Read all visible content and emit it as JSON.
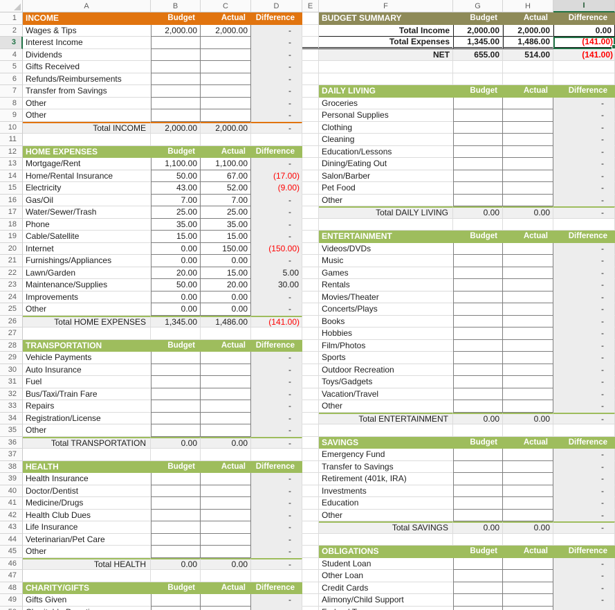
{
  "colors": {
    "orange": "#E1740F",
    "green": "#9EBD5D",
    "olive": "#8E8A58",
    "negative_red": "#FF0000",
    "selection_green": "#217346",
    "total_row_fill": "#F0F0F0",
    "difference_col_fill": "#EDEDED"
  },
  "selection": {
    "cell": "I3",
    "column": "I",
    "row": 3
  },
  "column_headers": [
    "A",
    "B",
    "C",
    "D",
    "E",
    "F",
    "G",
    "H",
    "I"
  ],
  "left_rows": [
    {
      "n": 1,
      "t": "section",
      "accent": "orange",
      "label": "INCOME",
      "h": [
        "Budget",
        "Actual",
        "Difference"
      ]
    },
    {
      "n": 2,
      "t": "item",
      "label": "Wages & Tips",
      "b": "2,000.00",
      "a": "2,000.00",
      "d": "-"
    },
    {
      "n": 3,
      "t": "item",
      "label": "Interest Income",
      "b": "",
      "a": "",
      "d": "-"
    },
    {
      "n": 4,
      "t": "item",
      "label": "Dividends",
      "b": "",
      "a": "",
      "d": "-"
    },
    {
      "n": 5,
      "t": "item",
      "label": "Gifts Received",
      "b": "",
      "a": "",
      "d": "-"
    },
    {
      "n": 6,
      "t": "item",
      "label": "Refunds/Reimbursements",
      "b": "",
      "a": "",
      "d": "-"
    },
    {
      "n": 7,
      "t": "item",
      "label": "Transfer from Savings",
      "b": "",
      "a": "",
      "d": "-"
    },
    {
      "n": 8,
      "t": "item",
      "label": "Other",
      "b": "",
      "a": "",
      "d": "-"
    },
    {
      "n": 9,
      "t": "item",
      "label": "Other",
      "b": "",
      "a": "",
      "d": "-"
    },
    {
      "n": 10,
      "t": "total",
      "accent": "orange",
      "label": "Total INCOME",
      "b": "2,000.00",
      "a": "2,000.00",
      "d": "-"
    },
    {
      "n": 11,
      "t": "blank"
    },
    {
      "n": 12,
      "t": "section",
      "accent": "green",
      "label": "HOME EXPENSES",
      "h": [
        "Budget",
        "Actual",
        "Difference"
      ]
    },
    {
      "n": 13,
      "t": "item",
      "label": "Mortgage/Rent",
      "b": "1,100.00",
      "a": "1,100.00",
      "d": "-"
    },
    {
      "n": 14,
      "t": "item",
      "label": "Home/Rental Insurance",
      "b": "50.00",
      "a": "67.00",
      "d": "(17.00)",
      "neg": true
    },
    {
      "n": 15,
      "t": "item",
      "label": "Electricity",
      "b": "43.00",
      "a": "52.00",
      "d": "(9.00)",
      "neg": true
    },
    {
      "n": 16,
      "t": "item",
      "label": "Gas/Oil",
      "b": "7.00",
      "a": "7.00",
      "d": "-"
    },
    {
      "n": 17,
      "t": "item",
      "label": "Water/Sewer/Trash",
      "b": "25.00",
      "a": "25.00",
      "d": "-"
    },
    {
      "n": 18,
      "t": "item",
      "label": "Phone",
      "b": "35.00",
      "a": "35.00",
      "d": "-"
    },
    {
      "n": 19,
      "t": "item",
      "label": "Cable/Satellite",
      "b": "15.00",
      "a": "15.00",
      "d": "-"
    },
    {
      "n": 20,
      "t": "item",
      "label": "Internet",
      "b": "0.00",
      "a": "150.00",
      "d": "(150.00)",
      "neg": true
    },
    {
      "n": 21,
      "t": "item",
      "label": "Furnishings/Appliances",
      "b": "0.00",
      "a": "0.00",
      "d": "-"
    },
    {
      "n": 22,
      "t": "item",
      "label": "Lawn/Garden",
      "b": "20.00",
      "a": "15.00",
      "d": "5.00",
      "pos": true
    },
    {
      "n": 23,
      "t": "item",
      "label": "Maintenance/Supplies",
      "b": "50.00",
      "a": "20.00",
      "d": "30.00",
      "pos": true
    },
    {
      "n": 24,
      "t": "item",
      "label": "Improvements",
      "b": "0.00",
      "a": "0.00",
      "d": "-"
    },
    {
      "n": 25,
      "t": "item",
      "label": "Other",
      "b": "0.00",
      "a": "0.00",
      "d": "-"
    },
    {
      "n": 26,
      "t": "total",
      "accent": "green",
      "label": "Total HOME EXPENSES",
      "b": "1,345.00",
      "a": "1,486.00",
      "d": "(141.00)",
      "neg": true
    },
    {
      "n": 27,
      "t": "blank"
    },
    {
      "n": 28,
      "t": "section",
      "accent": "green",
      "label": "TRANSPORTATION",
      "h": [
        "Budget",
        "Actual",
        "Difference"
      ]
    },
    {
      "n": 29,
      "t": "item",
      "label": "Vehicle Payments",
      "b": "",
      "a": "",
      "d": "-"
    },
    {
      "n": 30,
      "t": "item",
      "label": "Auto Insurance",
      "b": "",
      "a": "",
      "d": "-"
    },
    {
      "n": 31,
      "t": "item",
      "label": "Fuel",
      "b": "",
      "a": "",
      "d": "-"
    },
    {
      "n": 32,
      "t": "item",
      "label": "Bus/Taxi/Train Fare",
      "b": "",
      "a": "",
      "d": "-"
    },
    {
      "n": 33,
      "t": "item",
      "label": "Repairs",
      "b": "",
      "a": "",
      "d": "-"
    },
    {
      "n": 34,
      "t": "item",
      "label": "Registration/License",
      "b": "",
      "a": "",
      "d": "-"
    },
    {
      "n": 35,
      "t": "item",
      "label": "Other",
      "b": "",
      "a": "",
      "d": "-"
    },
    {
      "n": 36,
      "t": "total",
      "accent": "green",
      "label": "Total TRANSPORTATION",
      "b": "0.00",
      "a": "0.00",
      "d": "-"
    },
    {
      "n": 37,
      "t": "blank"
    },
    {
      "n": 38,
      "t": "section",
      "accent": "green",
      "label": "HEALTH",
      "h": [
        "Budget",
        "Actual",
        "Difference"
      ]
    },
    {
      "n": 39,
      "t": "item",
      "label": "Health Insurance",
      "b": "",
      "a": "",
      "d": "-"
    },
    {
      "n": 40,
      "t": "item",
      "label": "Doctor/Dentist",
      "b": "",
      "a": "",
      "d": "-"
    },
    {
      "n": 41,
      "t": "item",
      "label": "Medicine/Drugs",
      "b": "",
      "a": "",
      "d": "-"
    },
    {
      "n": 42,
      "t": "item",
      "label": "Health Club Dues",
      "b": "",
      "a": "",
      "d": "-"
    },
    {
      "n": 43,
      "t": "item",
      "label": "Life Insurance",
      "b": "",
      "a": "",
      "d": "-"
    },
    {
      "n": 44,
      "t": "item",
      "label": "Veterinarian/Pet Care",
      "b": "",
      "a": "",
      "d": "-"
    },
    {
      "n": 45,
      "t": "item",
      "label": "Other",
      "b": "",
      "a": "",
      "d": "-"
    },
    {
      "n": 46,
      "t": "total",
      "accent": "green",
      "label": "Total HEALTH",
      "b": "0.00",
      "a": "0.00",
      "d": "-"
    },
    {
      "n": 47,
      "t": "blank"
    },
    {
      "n": 48,
      "t": "section",
      "accent": "green",
      "label": "CHARITY/GIFTS",
      "h": [
        "Budget",
        "Actual",
        "Difference"
      ]
    },
    {
      "n": 49,
      "t": "item",
      "label": "Gifts Given",
      "b": "",
      "a": "",
      "d": "-"
    },
    {
      "n": 50,
      "t": "item",
      "label": "Charitable Donations",
      "b": "",
      "a": "",
      "d": "-"
    }
  ],
  "right_rows": [
    {
      "n": 1,
      "t": "section",
      "accent": "olive",
      "label": "BUDGET SUMMARY",
      "h": [
        "Budget",
        "Actual",
        "Difference"
      ]
    },
    {
      "n": 2,
      "t": "sum",
      "label": "Total Income",
      "b": "2,000.00",
      "a": "2,000.00",
      "d": "0.00"
    },
    {
      "n": 3,
      "t": "sum",
      "label": "Total Expenses",
      "b": "1,345.00",
      "a": "1,486.00",
      "d": "(141.00)",
      "neg": true,
      "dbl": true
    },
    {
      "n": 4,
      "t": "net",
      "label": "NET",
      "b": "655.00",
      "a": "514.00",
      "d": "(141.00)",
      "neg": true
    },
    {
      "n": 5,
      "t": "blank"
    },
    {
      "n": 6,
      "t": "blank"
    },
    {
      "n": 7,
      "t": "section",
      "accent": "green",
      "label": "DAILY LIVING",
      "h": [
        "Budget",
        "Actual",
        "Difference"
      ]
    },
    {
      "n": 8,
      "t": "item",
      "label": "Groceries",
      "b": "",
      "a": "",
      "d": "-"
    },
    {
      "n": 9,
      "t": "item",
      "label": "Personal Supplies",
      "b": "",
      "a": "",
      "d": "-"
    },
    {
      "n": 10,
      "t": "item",
      "label": "Clothing",
      "b": "",
      "a": "",
      "d": "-"
    },
    {
      "n": 11,
      "t": "item",
      "label": "Cleaning",
      "b": "",
      "a": "",
      "d": "-"
    },
    {
      "n": 12,
      "t": "item",
      "label": "Education/Lessons",
      "b": "",
      "a": "",
      "d": "-"
    },
    {
      "n": 13,
      "t": "item",
      "label": "Dining/Eating Out",
      "b": "",
      "a": "",
      "d": "-"
    },
    {
      "n": 14,
      "t": "item",
      "label": "Salon/Barber",
      "b": "",
      "a": "",
      "d": "-"
    },
    {
      "n": 15,
      "t": "item",
      "label": "Pet Food",
      "b": "",
      "a": "",
      "d": "-"
    },
    {
      "n": 16,
      "t": "item",
      "label": "Other",
      "b": "",
      "a": "",
      "d": "-"
    },
    {
      "n": 17,
      "t": "total",
      "accent": "green",
      "label": "Total DAILY LIVING",
      "b": "0.00",
      "a": "0.00",
      "d": "-"
    },
    {
      "n": 18,
      "t": "blank"
    },
    {
      "n": 19,
      "t": "section",
      "accent": "green",
      "label": "ENTERTAINMENT",
      "h": [
        "Budget",
        "Actual",
        "Difference"
      ]
    },
    {
      "n": 20,
      "t": "item",
      "label": "Videos/DVDs",
      "b": "",
      "a": "",
      "d": "-"
    },
    {
      "n": 21,
      "t": "item",
      "label": "Music",
      "b": "",
      "a": "",
      "d": "-"
    },
    {
      "n": 22,
      "t": "item",
      "label": "Games",
      "b": "",
      "a": "",
      "d": "-"
    },
    {
      "n": 23,
      "t": "item",
      "label": "Rentals",
      "b": "",
      "a": "",
      "d": "-"
    },
    {
      "n": 24,
      "t": "item",
      "label": "Movies/Theater",
      "b": "",
      "a": "",
      "d": "-"
    },
    {
      "n": 25,
      "t": "item",
      "label": "Concerts/Plays",
      "b": "",
      "a": "",
      "d": "-"
    },
    {
      "n": 26,
      "t": "item",
      "label": "Books",
      "b": "",
      "a": "",
      "d": "-"
    },
    {
      "n": 27,
      "t": "item",
      "label": "Hobbies",
      "b": "",
      "a": "",
      "d": "-"
    },
    {
      "n": 28,
      "t": "item",
      "label": "Film/Photos",
      "b": "",
      "a": "",
      "d": "-"
    },
    {
      "n": 29,
      "t": "item",
      "label": "Sports",
      "b": "",
      "a": "",
      "d": "-"
    },
    {
      "n": 30,
      "t": "item",
      "label": "Outdoor Recreation",
      "b": "",
      "a": "",
      "d": "-"
    },
    {
      "n": 31,
      "t": "item",
      "label": "Toys/Gadgets",
      "b": "",
      "a": "",
      "d": "-"
    },
    {
      "n": 32,
      "t": "item",
      "label": "Vacation/Travel",
      "b": "",
      "a": "",
      "d": "-"
    },
    {
      "n": 33,
      "t": "item",
      "label": "Other",
      "b": "",
      "a": "",
      "d": "-"
    },
    {
      "n": 34,
      "t": "total",
      "accent": "green",
      "label": "Total ENTERTAINMENT",
      "b": "0.00",
      "a": "0.00",
      "d": "-"
    },
    {
      "n": 35,
      "t": "blank"
    },
    {
      "n": 36,
      "t": "section",
      "accent": "green",
      "label": "SAVINGS",
      "h": [
        "Budget",
        "Actual",
        "Difference"
      ]
    },
    {
      "n": 37,
      "t": "item",
      "label": "Emergency Fund",
      "b": "",
      "a": "",
      "d": "-"
    },
    {
      "n": 38,
      "t": "item",
      "label": "Transfer to Savings",
      "b": "",
      "a": "",
      "d": "-"
    },
    {
      "n": 39,
      "t": "item",
      "label": "Retirement (401k, IRA)",
      "b": "",
      "a": "",
      "d": "-"
    },
    {
      "n": 40,
      "t": "item",
      "label": "Investments",
      "b": "",
      "a": "",
      "d": "-"
    },
    {
      "n": 41,
      "t": "item",
      "label": "Education",
      "b": "",
      "a": "",
      "d": "-"
    },
    {
      "n": 42,
      "t": "item",
      "label": "Other",
      "b": "",
      "a": "",
      "d": "-"
    },
    {
      "n": 43,
      "t": "total",
      "accent": "green",
      "label": "Total SAVINGS",
      "b": "0.00",
      "a": "0.00",
      "d": "-"
    },
    {
      "n": 44,
      "t": "blank"
    },
    {
      "n": 45,
      "t": "section",
      "accent": "green",
      "label": "OBLIGATIONS",
      "h": [
        "Budget",
        "Actual",
        "Difference"
      ]
    },
    {
      "n": 46,
      "t": "item",
      "label": "Student Loan",
      "b": "",
      "a": "",
      "d": "-"
    },
    {
      "n": 47,
      "t": "item",
      "label": "Other Loan",
      "b": "",
      "a": "",
      "d": "-"
    },
    {
      "n": 48,
      "t": "item",
      "label": "Credit Cards",
      "b": "",
      "a": "",
      "d": "-"
    },
    {
      "n": 49,
      "t": "item",
      "label": "Alimony/Child Support",
      "b": "",
      "a": "",
      "d": "-"
    },
    {
      "n": 50,
      "t": "item",
      "label": "Federal Taxes",
      "b": "",
      "a": "",
      "d": "-"
    }
  ]
}
